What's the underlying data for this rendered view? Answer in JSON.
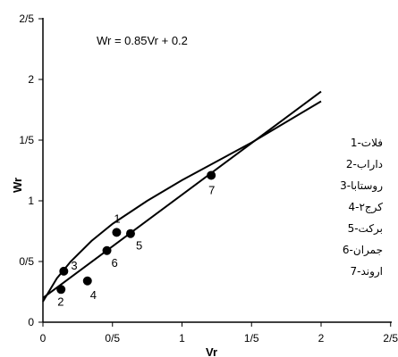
{
  "chart_data": {
    "type": "scatter",
    "title": "",
    "equation": "Wr = 0.85Vr + 0.2",
    "xlabel": "Vr",
    "ylabel": "Wr",
    "xlim": [
      0,
      2.5
    ],
    "ylim": [
      0,
      2.5
    ],
    "x_ticks": [
      "0",
      "0/5",
      "1",
      "1/5",
      "2",
      "2/5"
    ],
    "y_ticks": [
      "0",
      "0/5",
      "1",
      "1/5",
      "2",
      "2/5"
    ],
    "grid": false,
    "legend_position": "right",
    "legend": [
      "1-فلات",
      "2-داراب",
      "3-روستابا",
      "4-کرج۲",
      "5-برکت",
      "6-جمران",
      "7-اروند"
    ],
    "points": [
      {
        "label": "1",
        "x": 0.53,
        "y": 0.74
      },
      {
        "label": "2",
        "x": 0.13,
        "y": 0.27
      },
      {
        "label": "3",
        "x": 0.15,
        "y": 0.42
      },
      {
        "label": "4",
        "x": 0.32,
        "y": 0.34
      },
      {
        "label": "5",
        "x": 0.63,
        "y": 0.73
      },
      {
        "label": "6",
        "x": 0.46,
        "y": 0.59
      },
      {
        "label": "7",
        "x": 1.21,
        "y": 1.21
      }
    ],
    "series": [
      {
        "type": "line",
        "x": [
          0,
          2.0
        ],
        "y": [
          0.2,
          1.9
        ]
      },
      {
        "type": "curve",
        "x": [
          0,
          0.1,
          0.2,
          0.35,
          0.5,
          0.75,
          1.0,
          1.5,
          2.0
        ],
        "y": [
          0.17,
          0.36,
          0.5,
          0.67,
          0.81,
          1.0,
          1.17,
          1.48,
          1.82
        ]
      }
    ]
  }
}
